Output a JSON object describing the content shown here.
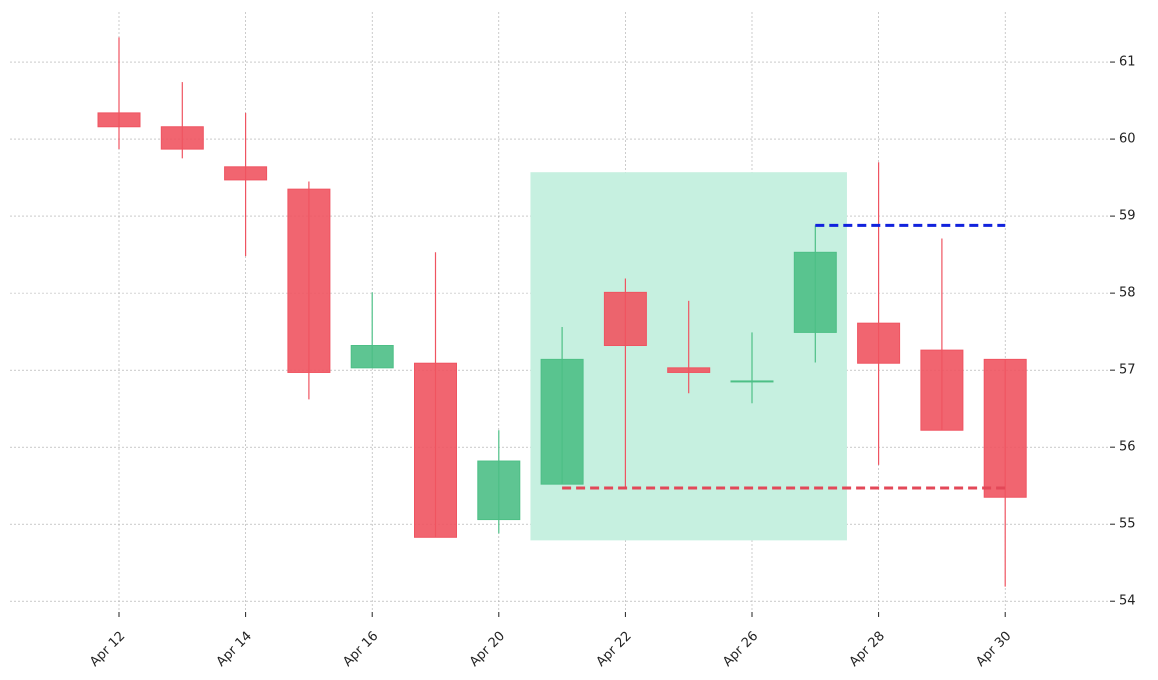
{
  "chart_data": {
    "type": "candlestick",
    "categories": [
      "Apr 12",
      null,
      "Apr 14",
      null,
      "Apr 16",
      null,
      "Apr 20",
      null,
      "Apr 22",
      null,
      "Apr 26",
      null,
      "Apr 28",
      null,
      "Apr 30"
    ],
    "open": [
      60.34,
      60.16,
      59.64,
      59.35,
      57.03,
      57.09,
      55.06,
      55.52,
      58.01,
      57.03,
      56.86,
      57.49,
      57.61,
      57.26,
      57.14
    ],
    "high": [
      61.32,
      60.74,
      60.34,
      59.45,
      58.01,
      58.53,
      56.22,
      57.56,
      58.19,
      57.9,
      57.49,
      58.88,
      59.7,
      58.71,
      57.14
    ],
    "low": [
      59.87,
      59.75,
      58.48,
      56.62,
      57.03,
      54.83,
      54.88,
      55.52,
      55.47,
      56.7,
      56.57,
      57.1,
      55.77,
      56.22,
      54.19
    ],
    "close": [
      60.16,
      59.87,
      59.47,
      56.97,
      57.32,
      54.83,
      55.82,
      57.14,
      57.32,
      56.97,
      56.86,
      58.53,
      57.09,
      56.22,
      55.35
    ],
    "up_color": "#4dbf86",
    "down_color": "#ef5461",
    "ylim": [
      53.86,
      61.65
    ],
    "yticks": [
      54,
      55,
      56,
      57,
      58,
      59,
      60,
      61
    ],
    "grid": true,
    "highlight": {
      "from": 7,
      "to": 11,
      "ylim": [
        54.79,
        59.57
      ],
      "color": "#c6f0e0"
    },
    "levels": [
      {
        "value": 58.88,
        "from": 11,
        "to": 14,
        "color": "#1122dd"
      },
      {
        "value": 55.47,
        "from": 7,
        "to": 14,
        "color": "#e34858"
      }
    ]
  }
}
